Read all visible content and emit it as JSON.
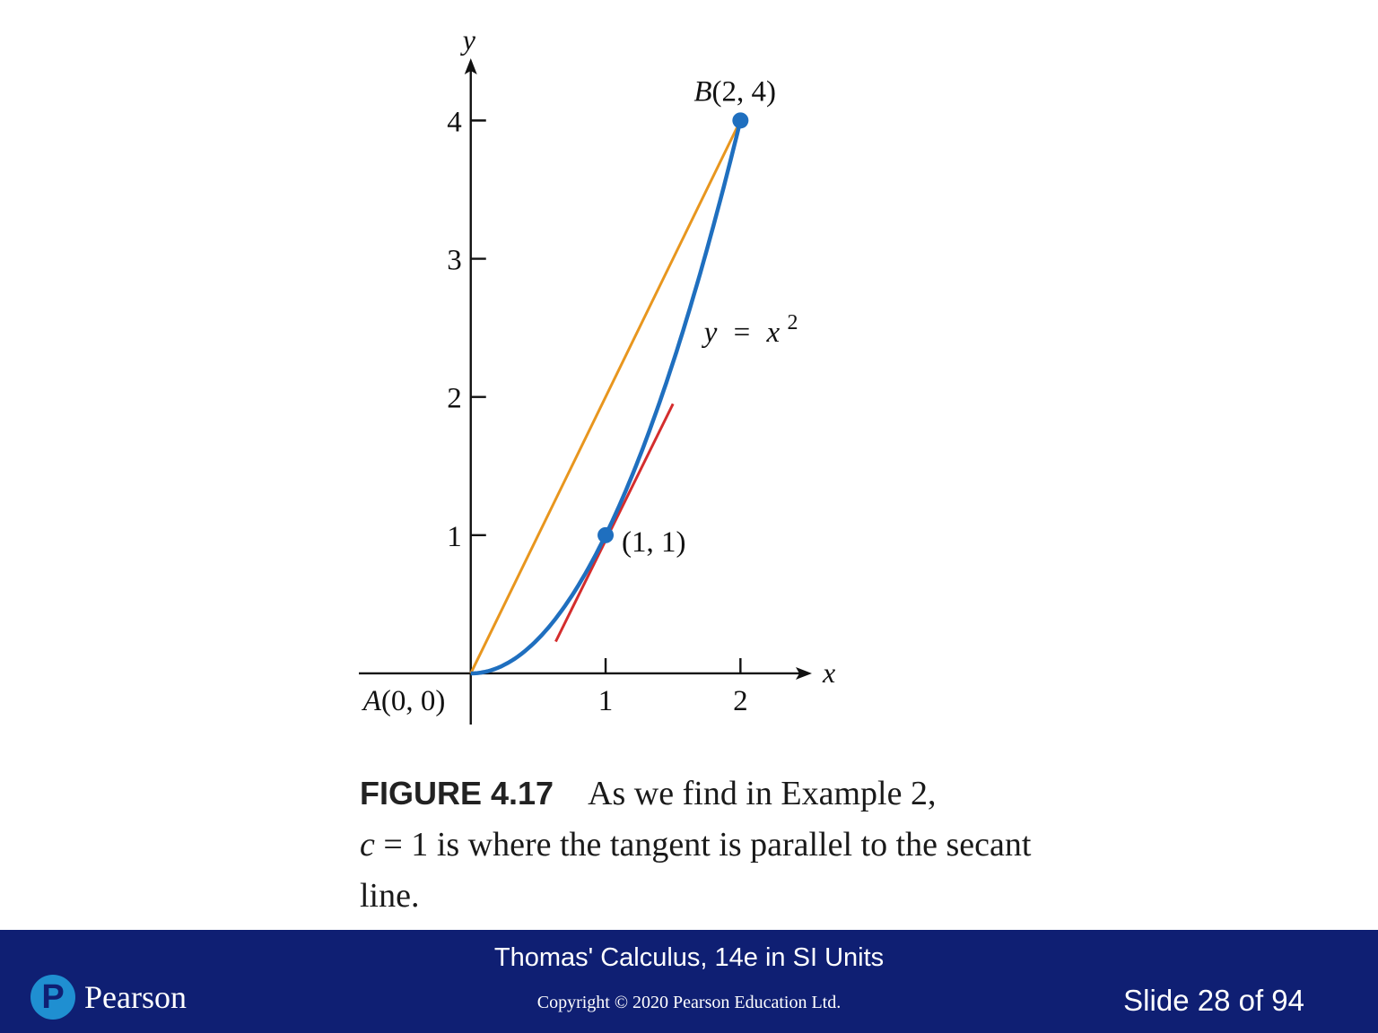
{
  "chart_data": {
    "type": "line",
    "xlabel": "x",
    "ylabel": "y",
    "xlim": [
      -0.83,
      2.53
    ],
    "ylim": [
      -0.37,
      4.45
    ],
    "x_ticks": [
      1,
      2
    ],
    "y_ticks": [
      1,
      2,
      3,
      4
    ],
    "grid": false,
    "series": [
      {
        "name": "y = x²",
        "role": "curve",
        "function": "x^2",
        "domain": [
          0,
          2
        ],
        "color": "#1f6fbf"
      },
      {
        "name": "secant",
        "role": "secant",
        "x": [
          0,
          2
        ],
        "y": [
          0,
          4
        ],
        "color": "#e8961e"
      },
      {
        "name": "tangent",
        "role": "tangent",
        "x": [
          0.63,
          1.5
        ],
        "y": [
          0.23,
          1.95
        ],
        "color": "#d42d2d"
      }
    ],
    "points": [
      {
        "name": "A",
        "label": "A(0, 0)",
        "x": 0,
        "y": 0,
        "marker": false
      },
      {
        "name": "c",
        "label": "(1, 1)",
        "x": 1,
        "y": 1,
        "marker": true
      },
      {
        "name": "B",
        "label": "B(2, 4)",
        "x": 2,
        "y": 4,
        "marker": true
      }
    ],
    "curve_label": {
      "lhs": "y",
      "eq": "=",
      "rhs": "x",
      "exp": "2"
    }
  },
  "caption": {
    "label": "FIGURE 4.17",
    "line1": "As we find in Example 2,",
    "math_var": "c",
    "math_rest": " = 1",
    "line2_rest": " is where the tangent is parallel to the secant line."
  },
  "footer": {
    "book_title": "Thomas' Calculus, 14e in SI Units",
    "copyright": "Copyright © 2020 Pearson Education Ltd.",
    "slide": "Slide 28 of 94",
    "logo_letter": "P",
    "logo_text": "Pearson"
  },
  "colors": {
    "footer_bg": "#0f1f73",
    "logo_blue": "#1f8fd1"
  }
}
